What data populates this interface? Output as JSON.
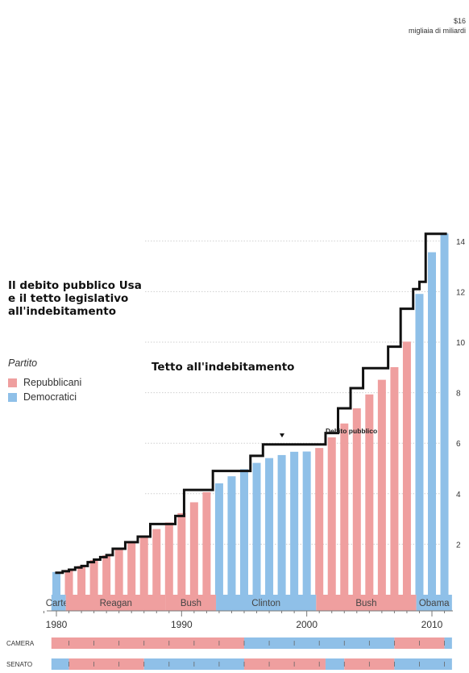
{
  "title_lines": [
    "Il debito pubblico Usa",
    "e il tetto legislativo",
    "all'indebitamento"
  ],
  "unit": {
    "currency": "$16",
    "label": "migliaia di miliardi"
  },
  "legend": {
    "title": "Partito",
    "items": [
      {
        "label": "Repubblicani",
        "color": "#ef9f9f"
      },
      {
        "label": "Democratici",
        "color": "#8fc0e8"
      }
    ]
  },
  "annotations": {
    "ceiling": "Tetto all'indebitamento",
    "debt": "Debito pubblico"
  },
  "chart_data": {
    "type": "bar",
    "x": [
      1980,
      1981,
      1982,
      1983,
      1984,
      1985,
      1986,
      1987,
      1988,
      1989,
      1990,
      1991,
      1992,
      1993,
      1994,
      1995,
      1996,
      1997,
      1998,
      1999,
      2000,
      2001,
      2002,
      2003,
      2004,
      2005,
      2006,
      2007,
      2008,
      2009,
      2010,
      2011
    ],
    "series": [
      {
        "name": "Debito pubblico",
        "values": [
          0.9,
          0.98,
          1.14,
          1.37,
          1.56,
          1.82,
          2.12,
          2.35,
          2.6,
          2.86,
          3.23,
          3.66,
          4.06,
          4.41,
          4.69,
          4.97,
          5.22,
          5.41,
          5.53,
          5.66,
          5.67,
          5.81,
          6.23,
          6.78,
          7.38,
          7.93,
          8.51,
          9.01,
          10.02,
          11.91,
          13.56,
          14.3
        ],
        "party": [
          "D",
          "R",
          "R",
          "R",
          "R",
          "R",
          "R",
          "R",
          "R",
          "R",
          "R",
          "R",
          "R",
          "D",
          "D",
          "D",
          "D",
          "D",
          "D",
          "D",
          "D",
          "R",
          "R",
          "R",
          "R",
          "R",
          "R",
          "R",
          "R",
          "D",
          "D",
          "D"
        ]
      },
      {
        "name": "Tetto all'indebitamento",
        "type": "step",
        "points": [
          [
            1979.9,
            0.87
          ],
          [
            1980.5,
            0.93
          ],
          [
            1981.0,
            0.99
          ],
          [
            1981.5,
            1.08
          ],
          [
            1982.0,
            1.14
          ],
          [
            1982.5,
            1.29
          ],
          [
            1983.0,
            1.39
          ],
          [
            1983.5,
            1.49
          ],
          [
            1984.0,
            1.57
          ],
          [
            1984.5,
            1.82
          ],
          [
            1985.5,
            2.08
          ],
          [
            1986.5,
            2.3
          ],
          [
            1987.5,
            2.8
          ],
          [
            1989.5,
            3.12
          ],
          [
            1990.2,
            4.15
          ],
          [
            1992.5,
            4.9
          ],
          [
            1995.5,
            5.5
          ],
          [
            1996.5,
            5.95
          ],
          [
            2001.5,
            6.4
          ],
          [
            2002.5,
            7.38
          ],
          [
            2003.5,
            8.18
          ],
          [
            2004.5,
            8.97
          ],
          [
            2006.5,
            9.82
          ],
          [
            2007.5,
            11.32
          ],
          [
            2008.5,
            12.1
          ],
          [
            2009.0,
            12.39
          ],
          [
            2009.5,
            14.29
          ],
          [
            2011.2,
            14.29
          ]
        ]
      }
    ],
    "ylim": [
      0,
      16
    ],
    "yticks": [
      2,
      4,
      6,
      8,
      10,
      12,
      14
    ],
    "xticks": [
      1980,
      1990,
      2000,
      2010
    ],
    "presidents": [
      {
        "name": "Carter",
        "party": "D",
        "start": 1979.6,
        "end": 1980.75
      },
      {
        "name": "Reagan",
        "party": "R",
        "start": 1980.75,
        "end": 1988.75
      },
      {
        "name": "Bush",
        "party": "R",
        "start": 1988.75,
        "end": 1992.75
      },
      {
        "name": "Clinton",
        "party": "D",
        "start": 1992.75,
        "end": 2000.75
      },
      {
        "name": "Bush",
        "party": "R",
        "start": 2000.75,
        "end": 2008.75
      },
      {
        "name": "Obama",
        "party": "D",
        "start": 2008.75,
        "end": 2011.6
      }
    ],
    "congress": [
      {
        "label": "CAMERA",
        "segments": [
          {
            "party": "R",
            "start": 1979.6,
            "end": 1995.0
          },
          {
            "party": "D",
            "start": 1995.0,
            "end": 2007.0
          },
          {
            "party": "R",
            "start": 2007.0,
            "end": 2011.0
          },
          {
            "party": "D",
            "start": 2011.0,
            "end": 2011.6
          }
        ]
      },
      {
        "label": "SENATO",
        "segments": [
          {
            "party": "D",
            "start": 1979.6,
            "end": 1981.0
          },
          {
            "party": "R",
            "start": 1981.0,
            "end": 1987.0
          },
          {
            "party": "D",
            "start": 1987.0,
            "end": 1995.0
          },
          {
            "party": "R",
            "start": 1995.0,
            "end": 2001.5
          },
          {
            "party": "D",
            "start": 2001.5,
            "end": 2003.0
          },
          {
            "party": "R",
            "start": 2003.0,
            "end": 2007.0
          },
          {
            "party": "D",
            "start": 2007.0,
            "end": 2011.6
          }
        ]
      }
    ]
  }
}
